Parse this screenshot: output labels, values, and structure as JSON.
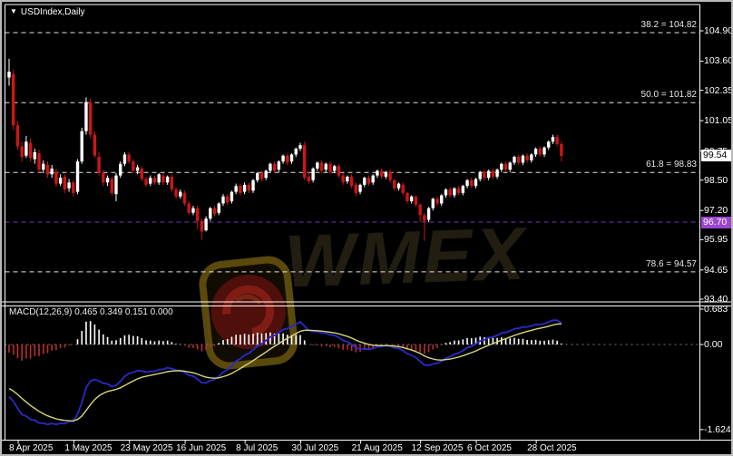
{
  "header": {
    "symbol_label": "USDIndex,Daily",
    "collapse_icon": "▼"
  },
  "watermark": {
    "text": "WMEX"
  },
  "colors": {
    "background": "#000000",
    "bull_candle": "#ffffff",
    "bear_candle": "#cc1616",
    "fib_line": "#e6e6e6",
    "hline": "#7d35bd",
    "hline_badge_bg": "#9b45d0",
    "price_badge_bg": "#ffffff",
    "macd_main_line": "#2a2ac8",
    "macd_signal_line": "#d6d67e",
    "hist_positive": "#ffffff",
    "hist_negative": "#bb2e2e",
    "axis_text": "#ffffff",
    "frame": "#ffffff",
    "zero_line": "#7d7d7d"
  },
  "chart_data": {
    "type": "candlestick",
    "symbol": "USDIndex",
    "timeframe": "Daily",
    "price_axis": {
      "side": "right",
      "range": [
        93.4,
        104.9
      ],
      "ticks": [
        {
          "text": "104.90",
          "price": 104.9
        },
        {
          "text": "103.60",
          "price": 103.6
        },
        {
          "text": "102.35",
          "price": 102.35
        },
        {
          "text": "101.05",
          "price": 101.05
        },
        {
          "text": "99.75",
          "price": 99.75
        },
        {
          "text": "98.50",
          "price": 98.5
        },
        {
          "text": "97.20",
          "price": 97.2
        },
        {
          "text": "95.95",
          "price": 95.95
        },
        {
          "text": "94.65",
          "price": 94.65
        },
        {
          "text": "93.40",
          "price": 93.4
        }
      ]
    },
    "time_axis": {
      "labels": [
        {
          "text": "8 Apr 2025",
          "index": 0
        },
        {
          "text": "1 May 2025",
          "index": 13
        },
        {
          "text": "23 May 2025",
          "index": 26
        },
        {
          "text": "16 Jun 2025",
          "index": 39
        },
        {
          "text": "8 Jul 2025",
          "index": 53
        },
        {
          "text": "30 Jul 2025",
          "index": 66
        },
        {
          "text": "21 Aug 2025",
          "index": 80
        },
        {
          "text": "12 Sep 2025",
          "index": 94
        },
        {
          "text": "6 Oct 2025",
          "index": 107
        },
        {
          "text": "28 Oct 2025",
          "index": 121
        }
      ]
    },
    "fib_levels": [
      {
        "label": "38.2 = 104.82",
        "price": 104.82
      },
      {
        "label": "50.0 = 101.82",
        "price": 101.82
      },
      {
        "label": "61.8 = 98.83",
        "price": 98.83
      },
      {
        "label": "78.6 = 94.57",
        "price": 94.57
      }
    ],
    "hline": {
      "label": "96.70",
      "price": 96.7
    },
    "current_price": {
      "label": "99.54",
      "price": 99.54
    },
    "ohlc_estimated": [
      [
        102.9,
        103.7,
        102.55,
        103.15
      ],
      [
        103.05,
        103.25,
        100.65,
        100.85
      ],
      [
        100.85,
        101.05,
        99.8,
        99.95
      ],
      [
        99.95,
        100.15,
        99.3,
        99.5
      ],
      [
        99.55,
        100.4,
        99.45,
        100.15
      ],
      [
        100.1,
        100.3,
        99.3,
        99.45
      ],
      [
        99.4,
        99.85,
        99.2,
        99.7
      ],
      [
        99.65,
        99.8,
        98.8,
        98.95
      ],
      [
        98.95,
        99.35,
        98.8,
        99.2
      ],
      [
        99.15,
        99.3,
        98.6,
        98.75
      ],
      [
        98.75,
        99.15,
        98.6,
        99.0
      ],
      [
        98.85,
        99.0,
        98.2,
        98.35
      ],
      [
        98.35,
        98.75,
        98.25,
        98.6
      ],
      [
        98.65,
        98.75,
        97.95,
        98.1
      ],
      [
        98.15,
        98.55,
        98.0,
        98.4
      ],
      [
        98.4,
        98.5,
        97.8,
        97.95
      ],
      [
        98.0,
        99.4,
        97.9,
        99.3
      ],
      [
        99.3,
        100.75,
        99.2,
        100.6
      ],
      [
        100.6,
        102.05,
        100.45,
        101.85
      ],
      [
        101.85,
        102.0,
        100.3,
        100.45
      ],
      [
        100.45,
        100.6,
        99.45,
        99.55
      ],
      [
        99.5,
        99.7,
        98.7,
        98.8
      ],
      [
        98.8,
        98.95,
        98.25,
        98.4
      ],
      [
        98.4,
        98.7,
        98.25,
        98.6
      ],
      [
        98.55,
        98.65,
        97.85,
        97.95
      ],
      [
        97.9,
        98.8,
        97.6,
        98.7
      ],
      [
        98.7,
        99.3,
        98.6,
        99.2
      ],
      [
        99.2,
        99.7,
        99.1,
        99.6
      ],
      [
        99.6,
        99.7,
        99.2,
        99.3
      ],
      [
        99.3,
        99.4,
        98.8,
        98.9
      ],
      [
        98.9,
        99.15,
        98.75,
        99.05
      ],
      [
        99.0,
        99.1,
        98.45,
        98.55
      ],
      [
        98.55,
        98.65,
        98.2,
        98.3
      ],
      [
        98.35,
        98.7,
        98.25,
        98.6
      ],
      [
        98.6,
        98.7,
        98.3,
        98.4
      ],
      [
        98.4,
        98.8,
        98.3,
        98.75
      ],
      [
        98.7,
        98.8,
        98.3,
        98.4
      ],
      [
        98.4,
        98.7,
        98.3,
        98.65
      ],
      [
        98.65,
        98.75,
        98.0,
        98.1
      ],
      [
        98.1,
        98.2,
        97.7,
        97.8
      ],
      [
        97.8,
        98.1,
        97.7,
        98.0
      ],
      [
        97.95,
        98.05,
        97.4,
        97.5
      ],
      [
        97.5,
        97.6,
        97.0,
        97.1
      ],
      [
        97.1,
        97.4,
        97.0,
        97.3
      ],
      [
        97.3,
        97.4,
        96.4,
        96.75
      ],
      [
        96.75,
        96.85,
        95.95,
        96.3
      ],
      [
        96.35,
        96.95,
        96.3,
        96.85
      ],
      [
        96.85,
        97.35,
        96.75,
        97.3
      ],
      [
        97.3,
        97.4,
        96.95,
        97.05
      ],
      [
        97.1,
        97.55,
        97.0,
        97.5
      ],
      [
        97.5,
        97.9,
        97.4,
        97.8
      ],
      [
        97.8,
        97.9,
        97.45,
        97.55
      ],
      [
        97.6,
        98.05,
        97.5,
        98.0
      ],
      [
        98.0,
        98.35,
        97.9,
        98.25
      ],
      [
        98.25,
        98.35,
        97.85,
        97.95
      ],
      [
        98.0,
        98.4,
        97.9,
        98.3
      ],
      [
        98.3,
        98.4,
        97.95,
        98.05
      ],
      [
        98.05,
        98.55,
        97.95,
        98.5
      ],
      [
        98.5,
        98.85,
        98.4,
        98.8
      ],
      [
        98.8,
        98.9,
        98.45,
        98.55
      ],
      [
        98.6,
        98.95,
        98.5,
        98.9
      ],
      [
        98.9,
        99.25,
        98.8,
        99.2
      ],
      [
        99.2,
        99.3,
        98.8,
        98.9
      ],
      [
        98.95,
        99.35,
        98.85,
        99.3
      ],
      [
        99.3,
        99.6,
        99.2,
        99.55
      ],
      [
        99.55,
        99.65,
        99.15,
        99.25
      ],
      [
        99.3,
        99.65,
        99.2,
        99.6
      ],
      [
        99.6,
        99.9,
        99.5,
        99.85
      ],
      [
        99.85,
        100.1,
        99.75,
        100.0
      ],
      [
        100.0,
        100.15,
        98.5,
        98.6
      ],
      [
        98.65,
        98.85,
        98.35,
        98.45
      ],
      [
        98.5,
        99.05,
        98.4,
        99.0
      ],
      [
        99.0,
        99.3,
        98.9,
        99.25
      ],
      [
        99.25,
        99.35,
        98.8,
        98.9
      ],
      [
        98.95,
        99.25,
        98.85,
        99.2
      ],
      [
        99.2,
        99.3,
        98.75,
        98.85
      ],
      [
        98.9,
        99.15,
        98.8,
        99.1
      ],
      [
        99.1,
        99.2,
        98.6,
        98.7
      ],
      [
        98.7,
        98.8,
        98.3,
        98.4
      ],
      [
        98.45,
        98.7,
        98.35,
        98.65
      ],
      [
        98.65,
        98.75,
        98.15,
        98.25
      ],
      [
        98.3,
        98.4,
        97.8,
        97.95
      ],
      [
        98.0,
        98.35,
        97.9,
        98.3
      ],
      [
        98.3,
        98.65,
        98.2,
        98.6
      ],
      [
        98.6,
        98.7,
        98.25,
        98.35
      ],
      [
        98.4,
        98.75,
        98.3,
        98.7
      ],
      [
        98.7,
        98.95,
        98.6,
        98.9
      ],
      [
        98.9,
        99.0,
        98.55,
        98.65
      ],
      [
        98.65,
        98.9,
        98.55,
        98.85
      ],
      [
        98.85,
        98.95,
        98.4,
        98.5
      ],
      [
        98.5,
        98.55,
        98.05,
        98.15
      ],
      [
        98.15,
        98.4,
        98.05,
        98.35
      ],
      [
        98.3,
        98.4,
        97.85,
        97.95
      ],
      [
        97.95,
        98.0,
        97.5,
        97.6
      ],
      [
        97.6,
        97.85,
        97.5,
        97.8
      ],
      [
        97.8,
        97.85,
        97.35,
        97.45
      ],
      [
        97.45,
        97.5,
        96.7,
        97.0
      ],
      [
        97.0,
        97.1,
        95.9,
        96.75
      ],
      [
        96.8,
        97.35,
        96.7,
        97.3
      ],
      [
        97.3,
        97.75,
        97.2,
        97.7
      ],
      [
        97.7,
        97.8,
        97.4,
        97.5
      ],
      [
        97.5,
        97.9,
        97.4,
        97.85
      ],
      [
        97.85,
        98.15,
        97.75,
        98.1
      ],
      [
        98.1,
        98.2,
        97.75,
        97.85
      ],
      [
        97.85,
        98.2,
        97.75,
        98.15
      ],
      [
        98.15,
        98.25,
        97.85,
        97.95
      ],
      [
        97.95,
        98.3,
        97.85,
        98.25
      ],
      [
        98.25,
        98.55,
        98.15,
        98.5
      ],
      [
        98.5,
        98.6,
        98.15,
        98.25
      ],
      [
        98.25,
        98.6,
        98.15,
        98.55
      ],
      [
        98.55,
        98.9,
        98.45,
        98.85
      ],
      [
        98.85,
        98.95,
        98.5,
        98.6
      ],
      [
        98.6,
        98.95,
        98.5,
        98.9
      ],
      [
        98.9,
        99.0,
        98.55,
        98.65
      ],
      [
        98.65,
        99.0,
        98.55,
        98.95
      ],
      [
        98.95,
        99.25,
        98.85,
        99.2
      ],
      [
        99.2,
        99.3,
        98.85,
        98.95
      ],
      [
        98.95,
        99.3,
        98.85,
        99.25
      ],
      [
        99.25,
        99.55,
        99.15,
        99.5
      ],
      [
        99.5,
        99.6,
        99.15,
        99.25
      ],
      [
        99.25,
        99.6,
        99.15,
        99.55
      ],
      [
        99.55,
        99.65,
        99.25,
        99.35
      ],
      [
        99.35,
        99.65,
        99.25,
        99.6
      ],
      [
        99.6,
        99.9,
        99.5,
        99.85
      ],
      [
        99.85,
        99.95,
        99.5,
        99.6
      ],
      [
        99.6,
        99.95,
        99.5,
        99.9
      ],
      [
        99.9,
        100.2,
        99.8,
        100.15
      ],
      [
        100.15,
        100.45,
        100.05,
        100.35
      ],
      [
        100.35,
        100.45,
        99.95,
        100.05
      ],
      [
        100.05,
        100.15,
        99.3,
        99.54
      ]
    ],
    "macd": {
      "label": "MACD(12,26,9) 0.465 0.349 0.151 0.000",
      "params": {
        "fast": 12,
        "slow": 26,
        "signal": 9
      },
      "axis_ticks": [
        {
          "text": "0.683",
          "value": 0.683
        },
        {
          "text": "0.00",
          "value": 0.0
        },
        {
          "text": "-1.624",
          "value": -1.624
        }
      ],
      "histogram_derived_from_closes": true
    }
  }
}
